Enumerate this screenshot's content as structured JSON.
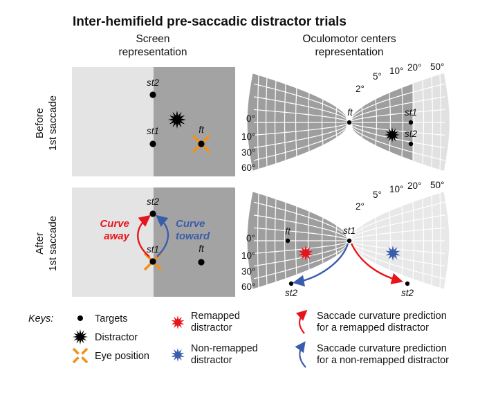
{
  "title": "Inter-hemifield pre-saccadic distractor trials",
  "columns": {
    "screen": [
      "Screen",
      "representation"
    ],
    "oculomotor": [
      "Oculomotor centers",
      "representation"
    ]
  },
  "rows": {
    "before": [
      "Before",
      "1st saccade"
    ],
    "after": [
      "After",
      "1st saccade"
    ]
  },
  "labels": {
    "st1": "st1",
    "st2": "st2",
    "ft": "ft"
  },
  "curve_labels": {
    "away": [
      "Curve",
      "away"
    ],
    "toward": [
      "Curve",
      "toward"
    ]
  },
  "eccentricity_ticks": [
    "0°",
    "10°",
    "30°",
    "60°"
  ],
  "angle_ticks": [
    "2°",
    "5°",
    "10°",
    "20°",
    "50°"
  ],
  "keys": {
    "heading": "Keys:",
    "targets": "Targets",
    "distractor": "Distractor",
    "eye_position": "Eye position",
    "remapped": [
      "Remapped",
      "distractor"
    ],
    "non_remapped": [
      "Non-remapped",
      "distractor"
    ],
    "remapped_prediction": [
      "Saccade curvature prediction",
      "for a remapped distractor"
    ],
    "non_remapped_prediction": [
      "Saccade curvature prediction",
      "for a non-remapped distractor"
    ]
  },
  "colors": {
    "light_gray": "#e4e4e4",
    "dark_gray": "#a3a3a3",
    "map_dark": "#9e9e9e",
    "map_light": "#e8e8e8",
    "red": "#e8141b",
    "blue": "#3a5dab",
    "orange": "#f39019"
  }
}
